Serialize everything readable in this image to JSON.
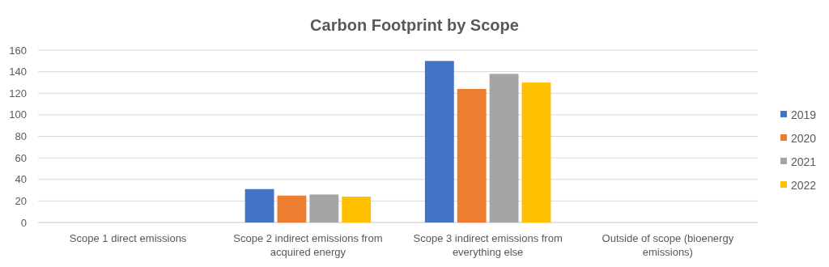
{
  "chart_data": {
    "type": "bar",
    "title": "Carbon Footprint by Scope",
    "categories": [
      "Scope 1 direct emissions",
      "Scope 2 indirect emissions from acquired energy",
      "Scope 3 indirect emissions from everything else",
      "Outside of scope (bioenergy emissions)"
    ],
    "series": [
      {
        "name": "2019",
        "color": "#4472c4",
        "values": [
          0,
          31,
          150,
          0
        ]
      },
      {
        "name": "2020",
        "color": "#ed7d31",
        "values": [
          0,
          25,
          124,
          0
        ]
      },
      {
        "name": "2021",
        "color": "#a5a5a5",
        "values": [
          0,
          26,
          138,
          0
        ]
      },
      {
        "name": "2022",
        "color": "#ffc000",
        "values": [
          0,
          24,
          130,
          0
        ]
      }
    ],
    "ylim": [
      0,
      160
    ],
    "yticks": [
      0,
      20,
      40,
      60,
      80,
      100,
      120,
      140,
      160
    ],
    "grid": "y",
    "legend": "right"
  }
}
